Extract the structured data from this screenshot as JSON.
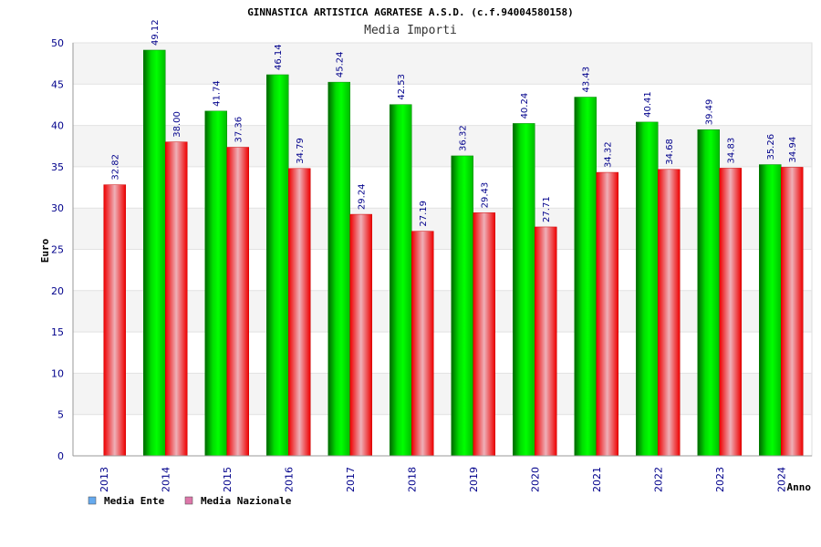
{
  "chart_data": {
    "type": "bar",
    "title": "GINNASTICA ARTISTICA AGRATESE A.S.D. (c.f.94004580158)",
    "subtitle": "Media Importi",
    "xlabel": "Anno",
    "ylabel": "Euro",
    "ylim": [
      0,
      50
    ],
    "yticks": [
      0,
      5,
      10,
      15,
      20,
      25,
      30,
      35,
      40,
      45,
      50
    ],
    "categories": [
      "2013",
      "2014",
      "2015",
      "2016",
      "2017",
      "2018",
      "2019",
      "2020",
      "2021",
      "2022",
      "2023",
      "2024"
    ],
    "series": [
      {
        "name": "Media Ente",
        "color": "#00cc00",
        "legend_color": "#66aaee",
        "values": [
          null,
          49.12,
          41.74,
          46.14,
          45.24,
          42.53,
          36.32,
          40.24,
          43.43,
          40.41,
          39.49,
          35.26
        ],
        "labels": [
          "",
          "49.12",
          "41.74",
          "46.14",
          "45.24",
          "42.53",
          "36.32",
          "40.24",
          "43.43",
          "40.41",
          "39.49",
          "35.26"
        ]
      },
      {
        "name": "Media Nazionale",
        "color": "#ee1111",
        "legend_color": "#dd77aa",
        "values": [
          32.82,
          38.0,
          37.36,
          34.79,
          29.24,
          27.19,
          29.43,
          27.71,
          34.32,
          34.68,
          34.83,
          34.94
        ],
        "labels": [
          "32.82",
          "38.00",
          "37.36",
          "34.79",
          "29.24",
          "27.19",
          "29.43",
          "27.71",
          "34.32",
          "34.68",
          "34.83",
          "34.94"
        ]
      }
    ],
    "grid": true,
    "legend_position": "bottom-left"
  }
}
